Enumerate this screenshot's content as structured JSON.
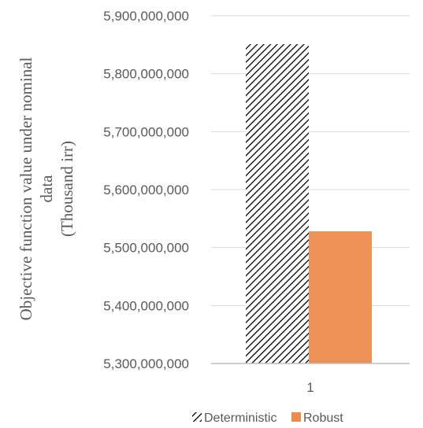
{
  "chart_data": {
    "type": "bar",
    "categories": [
      "1"
    ],
    "series": [
      {
        "name": "Deterministic",
        "values": [
          5851000000
        ],
        "fill": "hatch",
        "color": "#000000"
      },
      {
        "name": "Robust",
        "values": [
          5528000000
        ],
        "fill": "solid",
        "color": "#ED8B4E"
      }
    ],
    "ylabel_lines": [
      "Objective function value under nominal",
      "data",
      "(Thousand irr)"
    ],
    "ylim": [
      5300000000,
      5900000000
    ],
    "yticks": [
      5300000000,
      5400000000,
      5500000000,
      5600000000,
      5700000000,
      5800000000,
      5900000000
    ],
    "ytick_labels": [
      "5,300,000,000",
      "5,400,000,000",
      "5,500,000,000",
      "5,600,000,000",
      "5,700,000,000",
      "5,800,000,000",
      "5,900,000,000"
    ],
    "grid": true,
    "legend_position": "bottom"
  },
  "colors": {
    "grid": "#d9d9d9",
    "axis": "#bfbfbf",
    "text": "#595959"
  }
}
